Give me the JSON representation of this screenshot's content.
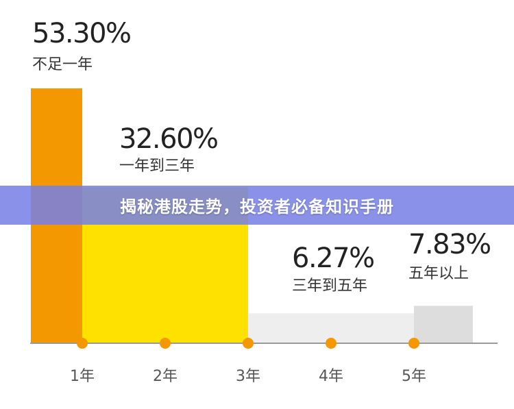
{
  "chart_data": {
    "type": "bar",
    "categories": [
      "不足一年",
      "一年到三年",
      "三年到五年",
      "五年以上"
    ],
    "values": [
      53.3,
      32.6,
      6.27,
      7.83
    ],
    "value_labels": [
      "53.30%",
      "32.60%",
      "6.27%",
      "7.83%"
    ],
    "x_ticks": [
      "1年",
      "2年",
      "3年",
      "4年",
      "5年"
    ],
    "colors": [
      "#F39800",
      "#FFE100",
      "#EEEEEE",
      "#DDDDDD"
    ],
    "marker_color": "#F39800",
    "baseline_color": "#999999",
    "grid": false,
    "ylim": [
      0,
      55
    ]
  },
  "banner": {
    "text": "揭秘港股走势，投资者必备知识手册",
    "color": "#7680E4"
  }
}
